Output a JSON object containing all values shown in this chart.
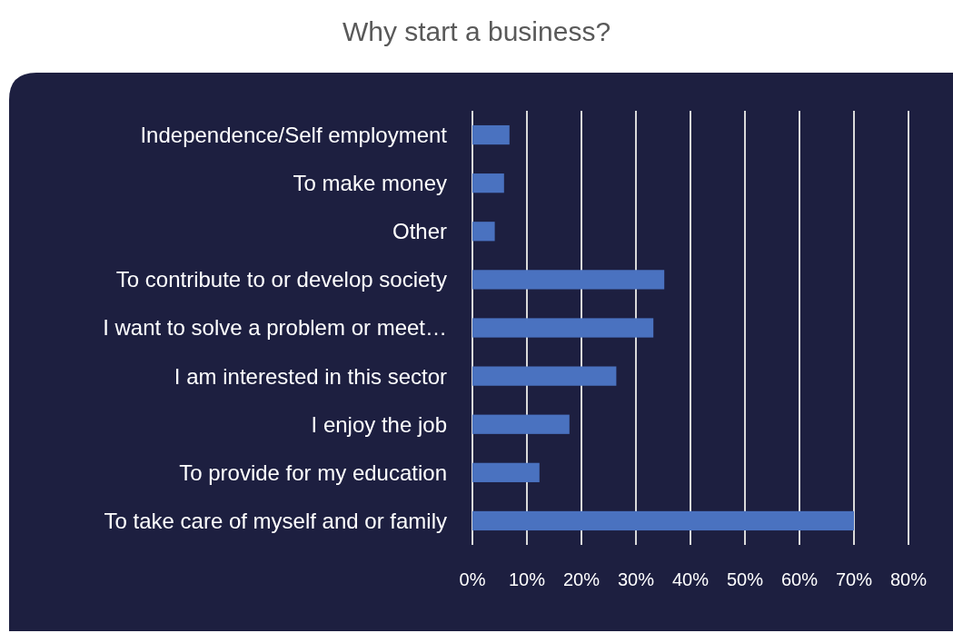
{
  "chart_data": {
    "type": "bar",
    "orientation": "horizontal",
    "title": "Why start a business?",
    "categories": [
      "Independence/Self employment",
      "To make money",
      "Other",
      "To contribute to or develop society",
      "I want to solve a problem or meet…",
      "I am interested in this sector",
      "I enjoy the job",
      "To provide for my education",
      "To take care of myself and or family"
    ],
    "values": [
      6.8,
      5.8,
      4.1,
      35.2,
      33.2,
      26.4,
      17.8,
      12.3,
      70
    ],
    "color": "#4a72c0",
    "xlim": [
      0,
      80
    ],
    "xticks": [
      {
        "value": 0,
        "label": "0%"
      },
      {
        "value": 10,
        "label": "10%"
      },
      {
        "value": 20,
        "label": "20%"
      },
      {
        "value": 30,
        "label": "30%"
      },
      {
        "value": 40,
        "label": "40%"
      },
      {
        "value": 50,
        "label": "50%"
      },
      {
        "value": 60,
        "label": "60%"
      },
      {
        "value": 70,
        "label": "70%"
      },
      {
        "value": 80,
        "label": "80%"
      }
    ],
    "grid": "x"
  }
}
